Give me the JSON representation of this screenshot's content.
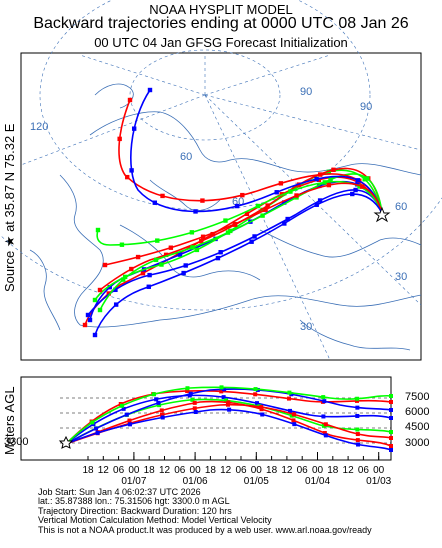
{
  "header": {
    "line1": "NOAA HYSPLIT MODEL",
    "line2": "Backward trajectories ending at 0000 UTC 08 Jan 26",
    "line3": "00 UTC 04 Jan    GFSG  Forecast Initialization"
  },
  "source_label": "Source ★ at   35.87 N   75.32 E",
  "map": {
    "lat_labels": [
      "60",
      "60",
      "30"
    ],
    "lon_labels": [
      "120",
      "90",
      "90",
      "60",
      "30"
    ],
    "colors": {
      "red": "#ff0000",
      "blue": "#0000ff",
      "green": "#00ff00",
      "map_lines": "#3b6fb6"
    }
  },
  "vertical": {
    "axis_label": "Meters AGL",
    "start_height": "3300",
    "levels": [
      "7500",
      "6000",
      "4500",
      "3000"
    ],
    "hour_ticks": [
      "18",
      "12",
      "06",
      "00",
      "18",
      "12",
      "06",
      "00",
      "18",
      "12",
      "06",
      "00",
      "18",
      "12",
      "06",
      "00",
      "18",
      "12",
      "06",
      "00"
    ],
    "dates": [
      "01/07",
      "01/06",
      "01/05",
      "01/04",
      "01/03"
    ]
  },
  "info": [
    "Job Start: Sun Jan  4 06:02:37 UTC 2026",
    "lat.: 35.87388   lon.: 75.31506    hgt: 3300.0 m AGL",
    "Trajectory Direction: Backward       Duration: 120 hrs",
    "Vertical Motion Calculation Method: Model Vertical Velocity",
    "This is not a NOAA product.It was produced by a web user. www.arl.noaa.gov/ready"
  ]
}
